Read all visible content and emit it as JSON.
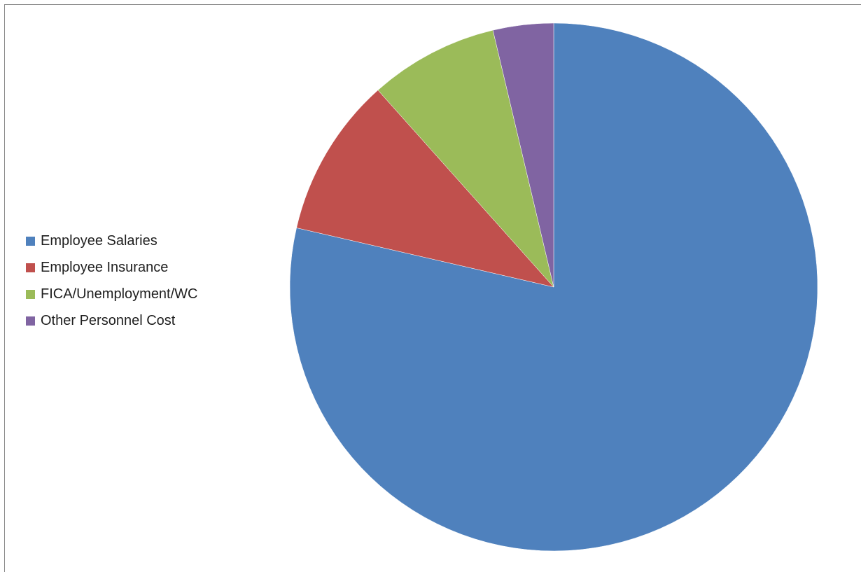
{
  "chart_data": {
    "type": "pie",
    "title": "",
    "start_angle_deg": 0,
    "direction": "clockwise",
    "legend_position": "left",
    "slices": [
      {
        "label": "Employee Salaries",
        "value": 78.6,
        "color": "#4F81BD"
      },
      {
        "label": "Employee Insurance",
        "value": 9.8,
        "color": "#C0504D"
      },
      {
        "label": "FICA/Unemployment/WC",
        "value": 7.9,
        "color": "#9BBB59"
      },
      {
        "label": "Other Personnel Cost",
        "value": 3.7,
        "color": "#8064A2"
      }
    ]
  }
}
